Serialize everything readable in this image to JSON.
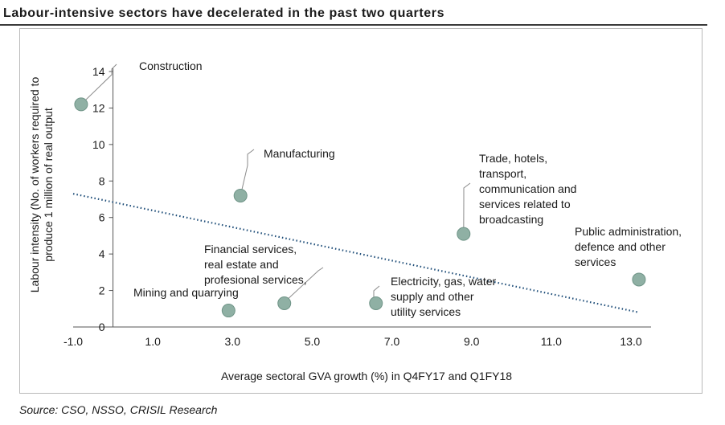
{
  "title": "Labour-intensive sectors have decelerated in the past two quarters",
  "source": "Source: CSO, NSSO, CRISIL Research",
  "chart_data": {
    "type": "scatter",
    "xlabel": "Average sectoral GVA growth (%) in Q4FY17 and Q1FY18",
    "ylabel": [
      "Labour intensity (No. of workers required to",
      "produce 1 million of real output"
    ],
    "xlim": [
      -1.0,
      14.0
    ],
    "ylim": [
      0,
      14
    ],
    "xticks": [
      "-1.0",
      "1.0",
      "3.0",
      "5.0",
      "7.0",
      "9.0",
      "11.0",
      "13.0"
    ],
    "xtick_values": [
      -1,
      1,
      3,
      5,
      7,
      9,
      11,
      13
    ],
    "yticks": [
      "0",
      "2",
      "4",
      "6",
      "8",
      "10",
      "12",
      "14"
    ],
    "ytick_values": [
      0,
      2,
      4,
      6,
      8,
      10,
      12,
      14
    ],
    "grid": false,
    "marker_color": "#8fb0a4",
    "trendline": {
      "style": "dotted",
      "color": "#1f4e79",
      "x": [
        -1.0,
        13.2
      ],
      "y": [
        7.3,
        0.8
      ]
    },
    "points": [
      {
        "label": [
          "Construction"
        ],
        "x": -0.8,
        "y": 12.2
      },
      {
        "label": [
          "Manufacturing"
        ],
        "x": 3.2,
        "y": 7.2
      },
      {
        "label": [
          "Trade, hotels,",
          "transport,",
          "communication and",
          "services related to",
          "broadcasting"
        ],
        "x": 8.8,
        "y": 5.1
      },
      {
        "label": [
          "Public administration,",
          "defence and other",
          "services"
        ],
        "x": 13.2,
        "y": 2.6
      },
      {
        "label": [
          "Financial services,",
          "real estate and",
          "profesional services,"
        ],
        "x": 4.3,
        "y": 1.3
      },
      {
        "label": [
          "Mining and quarrying"
        ],
        "x": 2.9,
        "y": 0.9
      },
      {
        "label": [
          "Electricity, gas, water",
          "supply and other",
          "utility services"
        ],
        "x": 6.6,
        "y": 1.3
      }
    ]
  }
}
